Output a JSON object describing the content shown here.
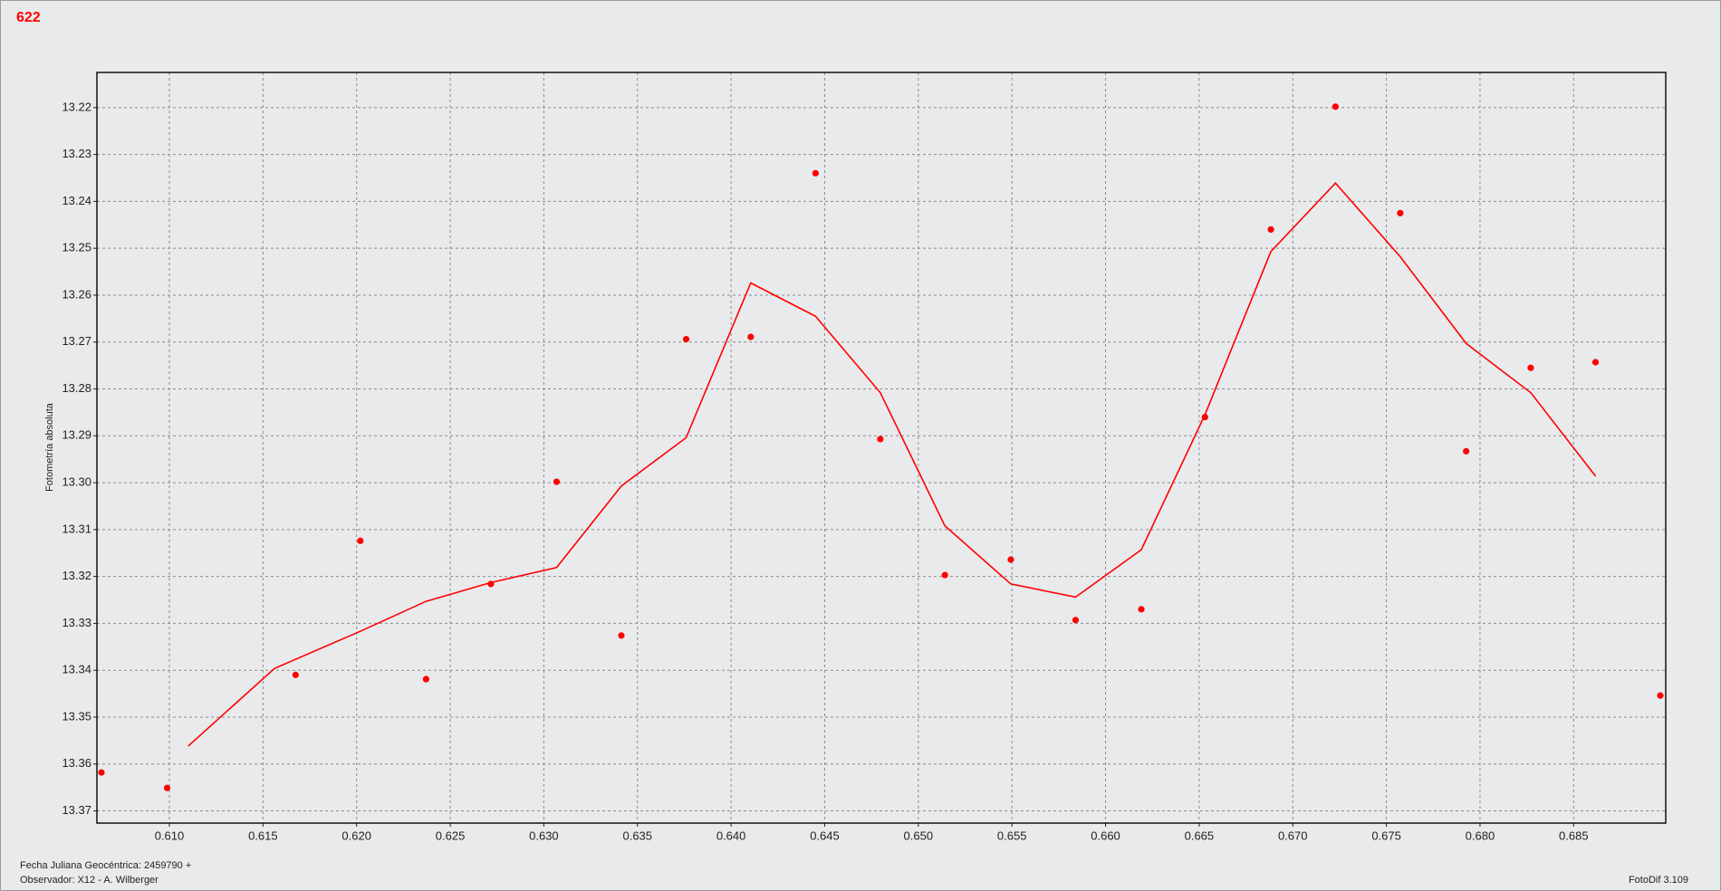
{
  "chart_data": {
    "type": "scatter",
    "title": "622",
    "y_label": "Fotometría absoluta",
    "footer_left": [
      "Fecha Juliana Geocéntrica: 2459790 +",
      "Observador: X12 - A. Wilberger"
    ],
    "footer_right": "FotoDif 3.109",
    "xlim": [
      0.60613,
      0.68992
    ],
    "xticks": [
      {
        "value": 0.61,
        "label": "0.610"
      },
      0.615,
      {
        "value": 0.62,
        "label": "0.620"
      },
      0.625,
      {
        "value": 0.63,
        "label": "0.630"
      },
      0.635,
      {
        "value": 0.64,
        "label": "0.640"
      },
      0.645,
      {
        "value": 0.65,
        "label": "0.650"
      },
      0.655,
      {
        "value": 0.66,
        "label": "0.660"
      },
      0.665,
      {
        "value": 0.67,
        "label": "0.670"
      },
      0.675,
      {
        "value": 0.68,
        "label": "0.680"
      },
      0.685
    ],
    "ylim": [
      13.2125,
      13.3726
    ],
    "y_inverted": true,
    "yticks": [
      13.22,
      13.23,
      13.24,
      13.25,
      13.26,
      13.27,
      13.28,
      13.29,
      {
        "value": 13.3,
        "label": "13.30"
      },
      13.31,
      13.32,
      13.33,
      13.34,
      13.35,
      13.36,
      13.37
    ],
    "grid": true,
    "series": [
      {
        "style": "points",
        "color": "#ff0000",
        "x": [
          0.60637,
          0.60988,
          0.61674,
          0.6202,
          0.62371,
          0.62717,
          0.63068,
          0.63414,
          0.6376,
          0.64105,
          0.64451,
          0.64797,
          0.65142,
          0.65494,
          0.6584,
          0.66191,
          0.66531,
          0.66883,
          0.67228,
          0.67574,
          0.67926,
          0.68271,
          0.68617,
          0.68963
        ],
        "values": [
          13.3618,
          13.3651,
          13.341,
          13.3124,
          13.3419,
          13.3216,
          13.2998,
          13.3326,
          13.2694,
          13.2689,
          13.234,
          13.2907,
          13.3197,
          13.3164,
          13.3293,
          13.327,
          13.286,
          13.246,
          13.2198,
          13.2425,
          13.2933,
          13.2755,
          13.2743,
          13.3454
        ]
      },
      {
        "style": "line",
        "color": "#ff0000",
        "x": [
          0.611,
          0.61562,
          0.62025,
          0.62371,
          0.62717,
          0.63068,
          0.63414,
          0.6376,
          0.64105,
          0.64451,
          0.64797,
          0.65142,
          0.65494,
          0.6584,
          0.66191,
          0.66531,
          0.66883,
          0.67228,
          0.67574,
          0.67926,
          0.68271,
          0.68617
        ],
        "values": [
          13.3562,
          13.3396,
          13.3316,
          13.3253,
          13.3213,
          13.3181,
          13.3007,
          13.2904,
          13.2574,
          13.2645,
          13.2808,
          13.3092,
          13.3216,
          13.3244,
          13.3143,
          13.2855,
          13.2507,
          13.2361,
          13.2518,
          13.2703,
          13.2808,
          13.2986
        ]
      }
    ]
  }
}
